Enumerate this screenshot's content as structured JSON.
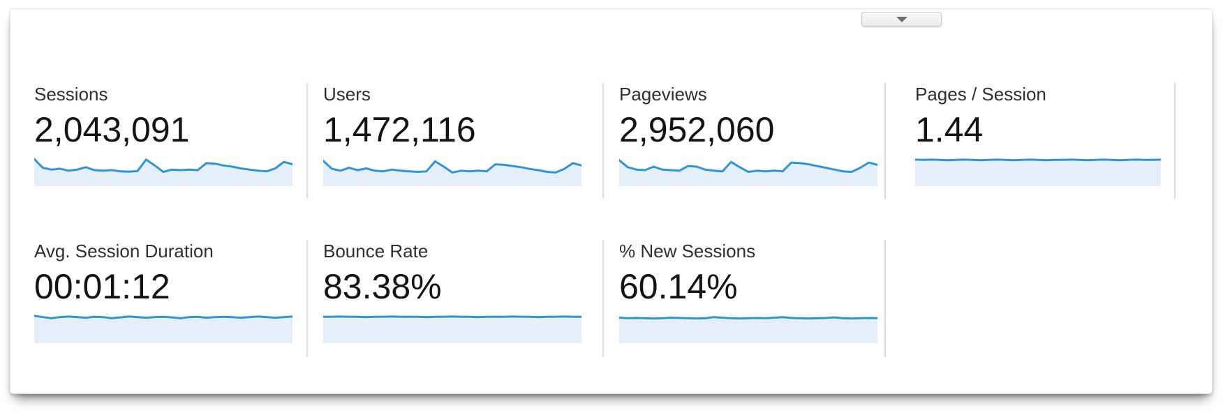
{
  "panel": {
    "collapse_button": {
      "icon": "chevron-down-icon"
    }
  },
  "colors": {
    "spark_line": "#3095d2",
    "spark_fill": "#e4eff9",
    "divider": "#dbdbdb",
    "label_text": "#2f2f2f",
    "value_text": "#141414"
  },
  "metrics": [
    {
      "id": "sessions",
      "label": "Sessions",
      "value": "2,043,091",
      "spark": [
        88,
        58,
        52,
        55,
        48,
        52,
        60,
        50,
        48,
        50,
        46,
        45,
        47,
        86,
        66,
        44,
        52,
        50,
        52,
        50,
        74,
        72,
        66,
        62,
        56,
        52,
        48,
        46,
        56,
        78,
        70
      ]
    },
    {
      "id": "users",
      "label": "Users",
      "value": "1,472,116",
      "spark": [
        82,
        55,
        48,
        58,
        50,
        56,
        48,
        46,
        52,
        48,
        46,
        44,
        46,
        80,
        62,
        42,
        48,
        46,
        48,
        46,
        70,
        68,
        64,
        60,
        54,
        50,
        44,
        42,
        54,
        74,
        66
      ]
    },
    {
      "id": "pageviews",
      "label": "Pageviews",
      "value": "2,952,060",
      "spark": [
        84,
        60,
        52,
        50,
        62,
        52,
        50,
        48,
        64,
        62,
        52,
        48,
        46,
        78,
        60,
        44,
        48,
        46,
        48,
        46,
        76,
        74,
        70,
        64,
        58,
        52,
        46,
        44,
        58,
        76,
        68
      ]
    },
    {
      "id": "pages-per-session",
      "label": "Pages / Session",
      "value": "1.44",
      "spark": [
        86,
        85,
        86,
        85,
        84,
        85,
        86,
        85,
        84,
        85,
        86,
        85,
        84,
        85,
        86,
        85,
        84,
        85,
        85,
        86,
        85,
        84,
        85,
        86,
        85,
        84,
        85,
        86,
        85,
        85,
        86
      ]
    },
    {
      "id": "avg-session-duration",
      "label": "Avg. Session Duration",
      "value": "00:01:12",
      "spark": [
        88,
        84,
        80,
        84,
        86,
        84,
        82,
        85,
        84,
        80,
        83,
        86,
        84,
        82,
        84,
        85,
        83,
        80,
        84,
        85,
        82,
        84,
        85,
        84,
        82,
        84,
        86,
        84,
        82,
        84,
        86
      ]
    },
    {
      "id": "bounce-rate",
      "label": "Bounce Rate",
      "value": "83.38%",
      "spark": [
        85,
        85,
        86,
        85,
        85,
        84,
        85,
        85,
        86,
        85,
        85,
        85,
        84,
        85,
        85,
        86,
        85,
        85,
        84,
        85,
        85,
        85,
        86,
        85,
        85,
        84,
        85,
        85,
        86,
        85,
        85
      ]
    },
    {
      "id": "percent-new-sessions",
      "label": "% New Sessions",
      "value": "60.14%",
      "spark": [
        82,
        80,
        81,
        80,
        79,
        80,
        82,
        81,
        80,
        79,
        80,
        84,
        82,
        80,
        79,
        80,
        81,
        80,
        82,
        84,
        81,
        80,
        79,
        80,
        81,
        83,
        80,
        79,
        80,
        81,
        80
      ]
    }
  ]
}
